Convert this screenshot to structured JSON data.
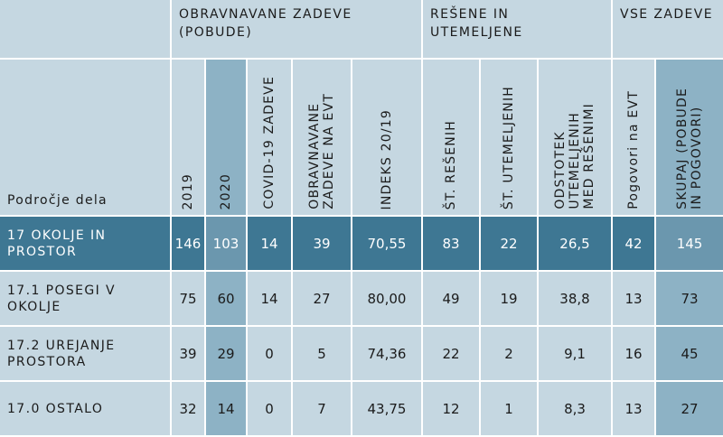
{
  "colors": {
    "light": "#c5d7e1",
    "mid": "#8db2c5",
    "highlight": "#3e7793",
    "highlight_mid": "#6b97ae"
  },
  "header": {
    "groups": [
      {
        "label": "OBRAVNAVANE ZADEVE (POBUDE)"
      },
      {
        "label": "REŠENE IN UTEMELJENE"
      },
      {
        "label": "VSE ZADEVE"
      }
    ],
    "columns": {
      "area": "Področje dela",
      "c2019": "2019",
      "c2020": "2020",
      "covid": "COVID-19 ZADEVE",
      "evt": "OBRAVNAVANE\nZADEVE NA EVT",
      "index": "INDEKS 20/19",
      "resenih": "ŠT. REŠENIH",
      "utemeljenih": "ŠT. UTEMELJENIH",
      "odstotek": "ODSTOTEK\nUTEMELJENIH\nMED REŠENIMI",
      "pogovori": "Pogovori na EVT",
      "skupaj": "SKUPAJ (POBUDE\nIN POGOVORI)"
    }
  },
  "rows": [
    {
      "area": "17 OKOLJE IN PROSTOR",
      "c2019": "146",
      "c2020": "103",
      "covid": "14",
      "evt": "39",
      "index": "70,55",
      "resenih": "83",
      "utemeljenih": "22",
      "odstotek": "26,5",
      "pogovori": "42",
      "skupaj": "145"
    },
    {
      "area": "17.1 POSEGI V OKOLJE",
      "c2019": "75",
      "c2020": "60",
      "covid": "14",
      "evt": "27",
      "index": "80,00",
      "resenih": "49",
      "utemeljenih": "19",
      "odstotek": "38,8",
      "pogovori": "13",
      "skupaj": "73"
    },
    {
      "area": "17.2 UREJANJE PROSTORA",
      "c2019": "39",
      "c2020": "29",
      "covid": "0",
      "evt": "5",
      "index": "74,36",
      "resenih": "22",
      "utemeljenih": "2",
      "odstotek": "9,1",
      "pogovori": "16",
      "skupaj": "45"
    },
    {
      "area": "17.0 OSTALO",
      "c2019": "32",
      "c2020": "14",
      "covid": "0",
      "evt": "7",
      "index": "43,75",
      "resenih": "12",
      "utemeljenih": "1",
      "odstotek": "8,3",
      "pogovori": "13",
      "skupaj": "27"
    }
  ]
}
